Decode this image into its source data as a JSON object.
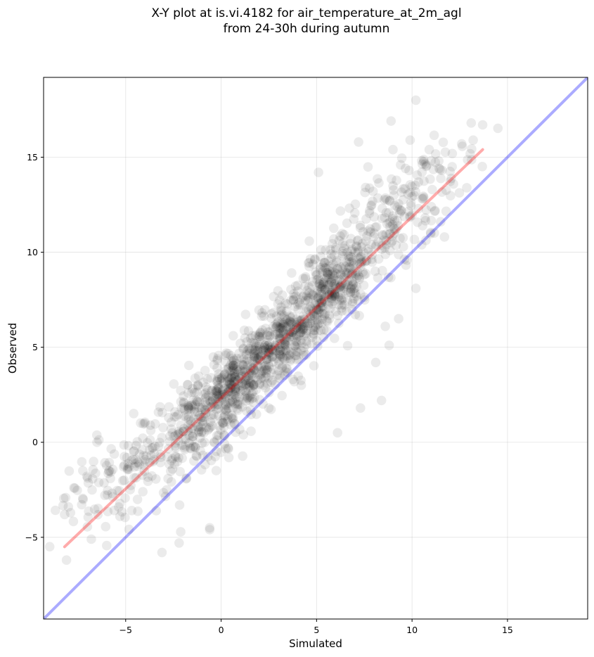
{
  "chart_data": {
    "type": "scatter",
    "title": "X-Y plot at is.vi.4182 for air_temperature_at_2m_agl\nfrom 24-30h during autumn",
    "xlabel": "Simulated",
    "ylabel": "Observed",
    "xlim": [
      -9.3,
      19.2
    ],
    "ylim": [
      -9.3,
      19.2
    ],
    "xticks": [
      -5,
      0,
      5,
      10,
      15
    ],
    "yticks": [
      -5,
      0,
      5,
      10,
      15
    ],
    "xtick_labels": [
      "−5",
      "0",
      "5",
      "10",
      "15"
    ],
    "ytick_labels": [
      "−5",
      "0",
      "5",
      "10",
      "15"
    ],
    "grid": true,
    "point_color": "#000000",
    "point_alpha": 0.08,
    "reference_line": {
      "x": [
        -9.3,
        19.2
      ],
      "y": [
        -9.3,
        19.2
      ],
      "color": "#0000ff"
    },
    "fit_line": {
      "x": [
        -8.2,
        13.7
      ],
      "y": [
        -5.5,
        15.4
      ],
      "color": "#ff0000"
    },
    "points_note_clusters": [
      {
        "cx": -5.5,
        "cy": -1.8,
        "sx": 1.6,
        "sy": 1.8,
        "n": 110
      },
      {
        "cx": -1.2,
        "cy": 1.0,
        "sx": 1.6,
        "sy": 2.0,
        "n": 260
      },
      {
        "cx": 1.0,
        "cy": 3.4,
        "sx": 1.4,
        "sy": 1.6,
        "n": 300
      },
      {
        "cx": 3.5,
        "cy": 5.6,
        "sx": 1.3,
        "sy": 1.6,
        "n": 300
      },
      {
        "cx": 5.8,
        "cy": 8.2,
        "sx": 1.0,
        "sy": 1.6,
        "n": 260
      },
      {
        "cx": 8.5,
        "cy": 11.3,
        "sx": 1.6,
        "sy": 2.0,
        "n": 190
      },
      {
        "cx": 11.5,
        "cy": 14.0,
        "sx": 1.2,
        "sy": 1.5,
        "n": 40
      }
    ],
    "scatter_points_sample": [
      [
        10.2,
        18.0
      ],
      [
        8.9,
        16.9
      ],
      [
        13.7,
        16.7
      ],
      [
        13.1,
        16.8
      ],
      [
        12.6,
        15.7
      ],
      [
        13.2,
        15.9
      ],
      [
        7.2,
        15.8
      ],
      [
        9.9,
        15.9
      ],
      [
        10.9,
        15.4
      ],
      [
        9.0,
        15.4
      ],
      [
        -5.3,
        -3.9
      ],
      [
        -8.1,
        -6.2
      ],
      [
        -8.0,
        -3.4
      ],
      [
        -8.2,
        -3.8
      ],
      [
        -6.5,
        0.0
      ],
      [
        -6.8,
        -5.1
      ],
      [
        -3.1,
        -5.8
      ],
      [
        -2.2,
        -5.3
      ],
      [
        -0.6,
        -4.5
      ],
      [
        -0.6,
        -4.6
      ],
      [
        2.5,
        1.8
      ],
      [
        6.1,
        0.5
      ],
      [
        7.3,
        1.8
      ],
      [
        8.4,
        2.2
      ],
      [
        8.1,
        4.2
      ],
      [
        8.8,
        5.1
      ],
      [
        8.6,
        6.1
      ],
      [
        9.3,
        6.5
      ],
      [
        10.2,
        8.1
      ],
      [
        11.7,
        10.8
      ],
      [
        11.5,
        11.6
      ],
      [
        5.1,
        14.2
      ],
      [
        9.4,
        14.6
      ],
      [
        12.1,
        14.5
      ],
      [
        11.4,
        14.8
      ],
      [
        3.3,
        5.4
      ],
      [
        3.8,
        5.9
      ],
      [
        1.0,
        3.8
      ],
      [
        0.3,
        2.6
      ],
      [
        -1.5,
        1.9
      ],
      [
        -3.4,
        -3.6
      ],
      [
        -4.1,
        -2.6
      ]
    ]
  }
}
